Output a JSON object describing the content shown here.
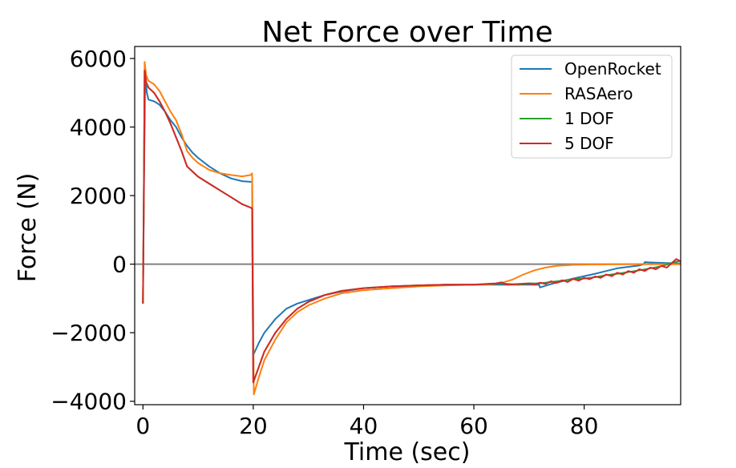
{
  "chart_data": {
    "type": "line",
    "title": "Net Force over Time",
    "xlabel": "Time (sec)",
    "ylabel": "Force (N)",
    "xlim": [
      -1.5,
      97.5
    ],
    "ylim": [
      -4100,
      6350
    ],
    "xticks": [
      0,
      20,
      40,
      60,
      80
    ],
    "yticks": [
      -4000,
      -2000,
      0,
      2000,
      4000,
      6000
    ],
    "xtick_labels": [
      "0",
      "20",
      "40",
      "60",
      "80"
    ],
    "ytick_labels": [
      "−4000",
      "−2000",
      "0",
      "2000",
      "4000",
      "6000"
    ],
    "grid": false,
    "legend_position": "top-right",
    "reference_line": {
      "y": 0,
      "color": "#808080"
    },
    "series": [
      {
        "name": "OpenRocket",
        "color": "#1f77b4",
        "points": [
          [
            0,
            -1150
          ],
          [
            0.2,
            2500
          ],
          [
            0.4,
            5600
          ],
          [
            0.7,
            5000
          ],
          [
            1,
            4800
          ],
          [
            2,
            4750
          ],
          [
            3,
            4650
          ],
          [
            4,
            4450
          ],
          [
            5,
            4200
          ],
          [
            6,
            4000
          ],
          [
            7,
            3700
          ],
          [
            8,
            3450
          ],
          [
            9,
            3250
          ],
          [
            10,
            3100
          ],
          [
            12,
            2850
          ],
          [
            14,
            2650
          ],
          [
            16,
            2500
          ],
          [
            18,
            2420
          ],
          [
            19.8,
            2400
          ],
          [
            20,
            -2650
          ],
          [
            21,
            -2300
          ],
          [
            22,
            -2000
          ],
          [
            24,
            -1600
          ],
          [
            26,
            -1300
          ],
          [
            28,
            -1150
          ],
          [
            30,
            -1050
          ],
          [
            33,
            -900
          ],
          [
            36,
            -800
          ],
          [
            40,
            -700
          ],
          [
            45,
            -650
          ],
          [
            50,
            -620
          ],
          [
            55,
            -600
          ],
          [
            60,
            -600
          ],
          [
            65,
            -600
          ],
          [
            70,
            -600
          ],
          [
            71.8,
            -600
          ],
          [
            72,
            -680
          ],
          [
            74,
            -580
          ],
          [
            76,
            -500
          ],
          [
            78,
            -420
          ],
          [
            80,
            -350
          ],
          [
            82,
            -280
          ],
          [
            84,
            -200
          ],
          [
            86,
            -120
          ],
          [
            88,
            -80
          ],
          [
            90,
            -40
          ],
          [
            90.8,
            0
          ],
          [
            91,
            60
          ],
          [
            92,
            50
          ],
          [
            95,
            30
          ],
          [
            97.5,
            20
          ]
        ]
      },
      {
        "name": "RASAero",
        "color": "#ff7f0e",
        "points": [
          [
            0,
            -1150
          ],
          [
            0.2,
            3000
          ],
          [
            0.3,
            5900
          ],
          [
            0.6,
            5500
          ],
          [
            1,
            5350
          ],
          [
            2,
            5250
          ],
          [
            3,
            5050
          ],
          [
            4,
            4750
          ],
          [
            5,
            4450
          ],
          [
            6,
            4200
          ],
          [
            7,
            3800
          ],
          [
            8,
            3300
          ],
          [
            9,
            3100
          ],
          [
            10,
            2950
          ],
          [
            12,
            2750
          ],
          [
            14,
            2650
          ],
          [
            16,
            2600
          ],
          [
            18,
            2560
          ],
          [
            19.5,
            2600
          ],
          [
            19.8,
            2650
          ],
          [
            20.1,
            -3800
          ],
          [
            21,
            -3300
          ],
          [
            22,
            -2800
          ],
          [
            24,
            -2200
          ],
          [
            26,
            -1700
          ],
          [
            28,
            -1400
          ],
          [
            30,
            -1200
          ],
          [
            33,
            -1000
          ],
          [
            36,
            -850
          ],
          [
            40,
            -760
          ],
          [
            45,
            -700
          ],
          [
            50,
            -650
          ],
          [
            55,
            -620
          ],
          [
            60,
            -600
          ],
          [
            63,
            -590
          ],
          [
            65,
            -550
          ],
          [
            67,
            -450
          ],
          [
            69,
            -300
          ],
          [
            71,
            -180
          ],
          [
            73,
            -100
          ],
          [
            75,
            -50
          ],
          [
            78,
            -20
          ],
          [
            82,
            -10
          ],
          [
            90,
            0
          ],
          [
            97.5,
            0
          ]
        ]
      },
      {
        "name": "1 DOF",
        "color": "#2ca02c",
        "points": [
          [
            0,
            -1150
          ],
          [
            0.2,
            3000
          ],
          [
            0.3,
            5650
          ],
          [
            0.6,
            5300
          ],
          [
            1,
            5150
          ],
          [
            2,
            5000
          ],
          [
            3,
            4750
          ],
          [
            4,
            4450
          ],
          [
            5,
            4100
          ],
          [
            6,
            3700
          ],
          [
            7,
            3300
          ],
          [
            8,
            2850
          ],
          [
            9,
            2700
          ],
          [
            10,
            2550
          ],
          [
            12,
            2350
          ],
          [
            14,
            2150
          ],
          [
            16,
            1950
          ],
          [
            18,
            1750
          ],
          [
            19.5,
            1650
          ],
          [
            19.8,
            1620
          ],
          [
            20,
            -3450
          ],
          [
            21,
            -3000
          ],
          [
            22,
            -2550
          ],
          [
            24,
            -2000
          ],
          [
            26,
            -1600
          ],
          [
            28,
            -1300
          ],
          [
            30,
            -1100
          ],
          [
            33,
            -900
          ],
          [
            36,
            -780
          ],
          [
            40,
            -700
          ],
          [
            45,
            -650
          ],
          [
            50,
            -620
          ],
          [
            55,
            -600
          ],
          [
            60,
            -600
          ],
          [
            65,
            -560
          ],
          [
            68,
            -600
          ],
          [
            70,
            -560
          ],
          [
            72,
            -560
          ],
          [
            74,
            -520
          ],
          [
            76,
            -480
          ],
          [
            78,
            -440
          ],
          [
            80,
            -420
          ],
          [
            82,
            -380
          ],
          [
            84,
            -320
          ],
          [
            86,
            -280
          ],
          [
            88,
            -230
          ],
          [
            90,
            -180
          ],
          [
            92,
            -120
          ],
          [
            94,
            -60
          ],
          [
            96,
            40
          ],
          [
            97.5,
            100
          ]
        ]
      },
      {
        "name": "5 DOF",
        "color": "#d62728",
        "points": [
          [
            0,
            -1150
          ],
          [
            0.2,
            3000
          ],
          [
            0.3,
            5650
          ],
          [
            0.6,
            5300
          ],
          [
            1,
            5150
          ],
          [
            2,
            5000
          ],
          [
            3,
            4750
          ],
          [
            4,
            4450
          ],
          [
            5,
            4100
          ],
          [
            6,
            3700
          ],
          [
            7,
            3300
          ],
          [
            8,
            2850
          ],
          [
            9,
            2700
          ],
          [
            10,
            2550
          ],
          [
            12,
            2350
          ],
          [
            14,
            2150
          ],
          [
            16,
            1950
          ],
          [
            18,
            1750
          ],
          [
            19.5,
            1650
          ],
          [
            19.8,
            1620
          ],
          [
            20,
            -3450
          ],
          [
            21,
            -3000
          ],
          [
            22,
            -2550
          ],
          [
            24,
            -2000
          ],
          [
            26,
            -1600
          ],
          [
            28,
            -1300
          ],
          [
            30,
            -1100
          ],
          [
            33,
            -900
          ],
          [
            36,
            -780
          ],
          [
            40,
            -700
          ],
          [
            45,
            -650
          ],
          [
            50,
            -620
          ],
          [
            55,
            -600
          ],
          [
            60,
            -600
          ],
          [
            62,
            -580
          ],
          [
            64,
            -560
          ],
          [
            65,
            -530
          ],
          [
            66,
            -600
          ],
          [
            68,
            -580
          ],
          [
            70,
            -560
          ],
          [
            71,
            -600
          ],
          [
            72,
            -540
          ],
          [
            73,
            -580
          ],
          [
            74,
            -500
          ],
          [
            75,
            -550
          ],
          [
            76,
            -470
          ],
          [
            77,
            -520
          ],
          [
            78,
            -430
          ],
          [
            79,
            -480
          ],
          [
            80,
            -400
          ],
          [
            81,
            -440
          ],
          [
            82,
            -360
          ],
          [
            83,
            -400
          ],
          [
            84,
            -300
          ],
          [
            85,
            -350
          ],
          [
            86,
            -250
          ],
          [
            87,
            -300
          ],
          [
            88,
            -200
          ],
          [
            89,
            -250
          ],
          [
            90,
            -150
          ],
          [
            91,
            -200
          ],
          [
            92,
            -100
          ],
          [
            93,
            -150
          ],
          [
            94,
            -50
          ],
          [
            95,
            -100
          ],
          [
            96,
            50
          ],
          [
            96.7,
            150
          ],
          [
            97.5,
            80
          ]
        ]
      }
    ]
  }
}
